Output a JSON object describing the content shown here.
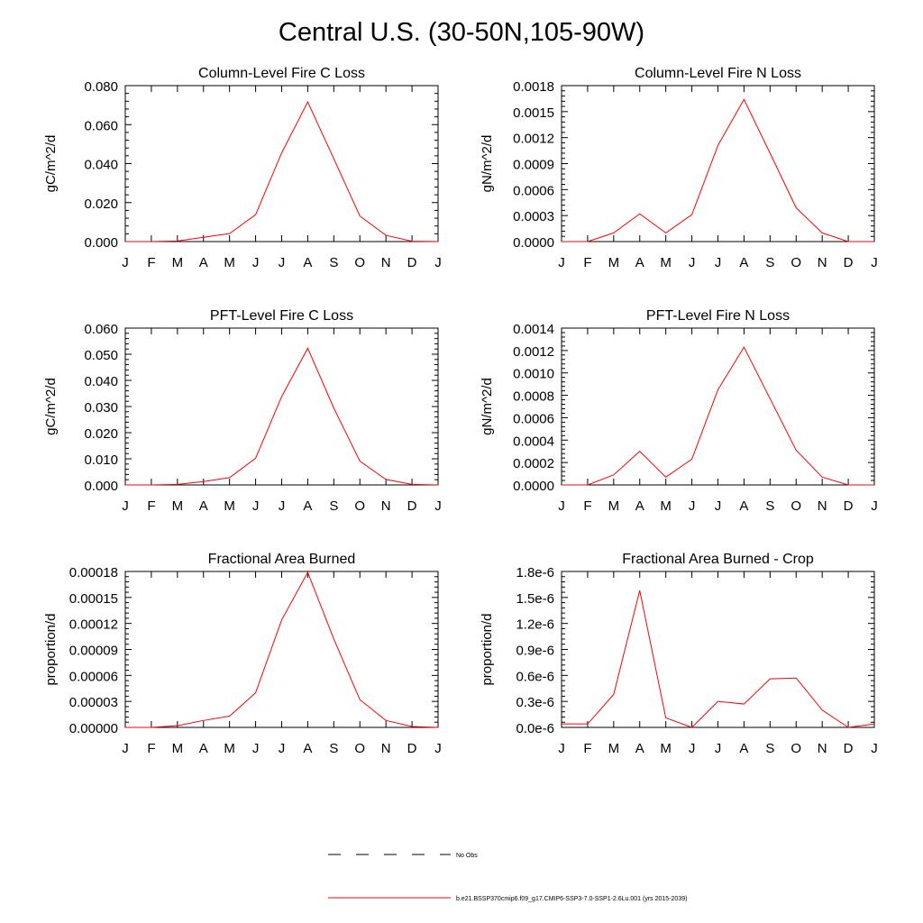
{
  "page": {
    "title": "Central U.S. (30-50N,105-90W)"
  },
  "legend": {
    "items": [
      {
        "label": "No Obs",
        "style": "dashed",
        "color": "#000000"
      },
      {
        "label": "b.e21.BSSP370cmip6.f09_g17.CMIP6-SSP3-7.0-SSP1-2.6Lu.001 (yrs 2015-2039)",
        "style": "solid",
        "color": "#ff0000"
      }
    ]
  },
  "colors": {
    "series": "#ff0000",
    "axis": "#000000"
  },
  "chart_data": [
    {
      "type": "line",
      "title": "Column-Level Fire C Loss",
      "ylabel": "gC/m^2/d",
      "xlabel": "",
      "categories": [
        "J",
        "F",
        "M",
        "A",
        "M",
        "J",
        "J",
        "A",
        "S",
        "O",
        "N",
        "D",
        "J"
      ],
      "yticks": [
        "0.000",
        "0.020",
        "0.040",
        "0.060",
        "0.080"
      ],
      "ylim": [
        0,
        0.08
      ],
      "series": [
        {
          "values": [
            0.0,
            0.0,
            0.0003,
            0.0022,
            0.0041,
            0.0138,
            0.0455,
            0.0716,
            0.0425,
            0.0131,
            0.0032,
            0.0002,
            0.0
          ]
        }
      ]
    },
    {
      "type": "line",
      "title": "Column-Level Fire N Loss",
      "ylabel": "gN/m^2/d",
      "xlabel": "",
      "categories": [
        "J",
        "F",
        "M",
        "A",
        "M",
        "J",
        "J",
        "A",
        "S",
        "O",
        "N",
        "D",
        "J"
      ],
      "yticks": [
        "0.0000",
        "0.0003",
        "0.0006",
        "0.0009",
        "0.0012",
        "0.0015",
        "0.0018"
      ],
      "ylim": [
        0,
        0.0018
      ],
      "series": [
        {
          "values": [
            0.0,
            0.0,
            0.0001,
            0.00032,
            0.0001,
            0.00031,
            0.00111,
            0.00164,
            0.00102,
            0.00039,
            0.0001,
            0.0,
            0.0
          ]
        }
      ]
    },
    {
      "type": "line",
      "title": "PFT-Level Fire C Loss",
      "ylabel": "gC/m^2/d",
      "xlabel": "",
      "categories": [
        "J",
        "F",
        "M",
        "A",
        "M",
        "J",
        "J",
        "A",
        "S",
        "O",
        "N",
        "D",
        "J"
      ],
      "yticks": [
        "0.000",
        "0.010",
        "0.020",
        "0.030",
        "0.040",
        "0.050",
        "0.060"
      ],
      "ylim": [
        0,
        0.06
      ],
      "series": [
        {
          "values": [
            0.0,
            0.0,
            0.0002,
            0.0013,
            0.0028,
            0.0102,
            0.0338,
            0.0523,
            0.0294,
            0.0091,
            0.0021,
            0.0002,
            0.0
          ]
        }
      ]
    },
    {
      "type": "line",
      "title": "PFT-Level Fire N Loss",
      "ylabel": "gN/m^2/d",
      "xlabel": "",
      "categories": [
        "J",
        "F",
        "M",
        "A",
        "M",
        "J",
        "J",
        "A",
        "S",
        "O",
        "N",
        "D",
        "J"
      ],
      "yticks": [
        "0.0000",
        "0.0002",
        "0.0004",
        "0.0006",
        "0.0008",
        "0.0010",
        "0.0012",
        "0.0014"
      ],
      "ylim": [
        0,
        0.0014
      ],
      "series": [
        {
          "values": [
            0.0,
            0.0,
            9e-05,
            0.0003,
            7e-05,
            0.00023,
            0.00085,
            0.00123,
            0.00077,
            0.00031,
            7e-05,
            0.0,
            0.0
          ]
        }
      ]
    },
    {
      "type": "line",
      "title": "Fractional Area Burned",
      "ylabel": "proportion/d",
      "xlabel": "",
      "categories": [
        "J",
        "F",
        "M",
        "A",
        "M",
        "J",
        "J",
        "A",
        "S",
        "O",
        "N",
        "D",
        "J"
      ],
      "yticks": [
        "0.00000",
        "0.00003",
        "0.00006",
        "0.00009",
        "0.00012",
        "0.00015",
        "0.00018"
      ],
      "ylim": [
        0,
        0.00018
      ],
      "series": [
        {
          "values": [
            0.0,
            0.0,
            2e-06,
            8e-06,
            1.3e-05,
            4e-05,
            0.000124,
            0.000179,
            0.000102,
            3.2e-05,
            8e-06,
            1e-06,
            0.0
          ]
        }
      ]
    },
    {
      "type": "line",
      "title": "Fractional Area Burned - Crop",
      "ylabel": "proportion/d",
      "xlabel": "",
      "categories": [
        "J",
        "F",
        "M",
        "A",
        "M",
        "J",
        "J",
        "A",
        "S",
        "O",
        "N",
        "D",
        "J"
      ],
      "yticks": [
        "0.0e-6",
        "0.3e-6",
        "0.6e-6",
        "0.9e-6",
        "1.2e-6",
        "1.5e-6",
        "1.8e-6"
      ],
      "ylim": [
        0,
        1.8e-06
      ],
      "series": [
        {
          "values": [
            4e-08,
            4e-08,
            3.8e-07,
            1.58e-06,
            1.1e-07,
            0.0,
            3e-07,
            2.7e-07,
            5.6e-07,
            5.7e-07,
            2e-07,
            0.0,
            4e-08
          ]
        }
      ]
    }
  ]
}
